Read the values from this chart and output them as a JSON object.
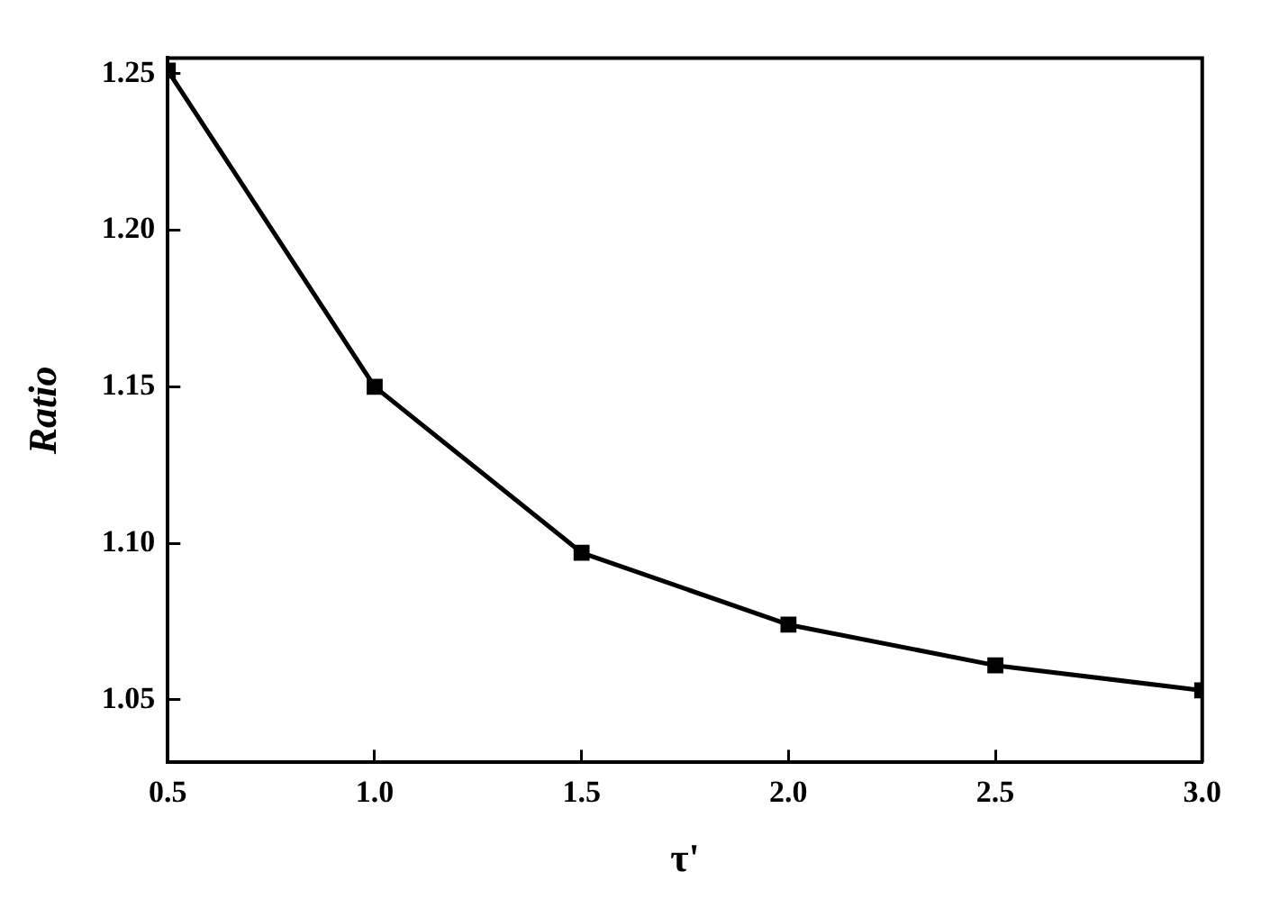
{
  "chart_data": {
    "type": "line",
    "xlabel": "τ'",
    "ylabel": "Ratio",
    "x": [
      0.5,
      1.0,
      1.5,
      2.0,
      2.5,
      3.0
    ],
    "series": [
      {
        "color": "#000000",
        "values": [
          1.251,
          1.15,
          1.097,
          1.074,
          1.061,
          1.053
        ]
      }
    ],
    "xlim": [
      0.5,
      3.0
    ],
    "xticks": [
      {
        "value": 0.5,
        "label": "0.5"
      },
      {
        "value": 1.0,
        "label": "1.0"
      },
      {
        "value": 1.5,
        "label": "1.5"
      },
      {
        "value": 2.0,
        "label": "2.0"
      },
      {
        "value": 2.5,
        "label": "2.5"
      },
      {
        "value": 3.0,
        "label": "3.0"
      }
    ],
    "ylim": [
      1.03,
      1.255
    ],
    "yticks": [
      {
        "value": 1.05,
        "label": "1.05"
      },
      {
        "value": 1.1,
        "label": "1.10"
      },
      {
        "value": 1.15,
        "label": "1.15"
      },
      {
        "value": 1.2,
        "label": "1.20"
      },
      {
        "value": 1.25,
        "label": "1.25"
      }
    ],
    "marker": "square",
    "line_style": "solid",
    "grid": false,
    "legend": false
  }
}
